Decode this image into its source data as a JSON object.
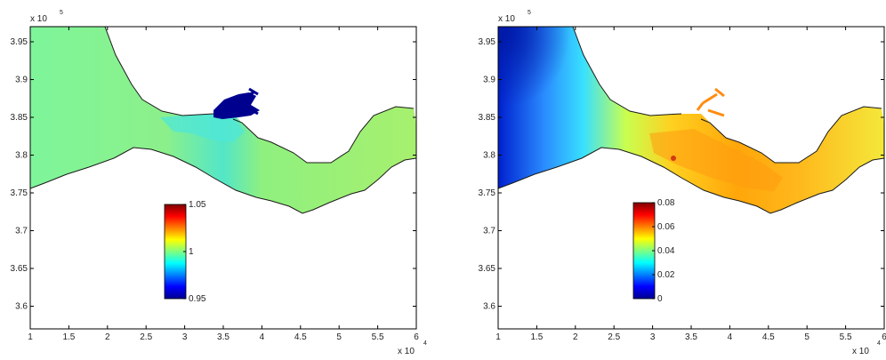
{
  "chart_data": [
    {
      "type": "heatmap",
      "title": "",
      "xlabel": "",
      "ylabel": "",
      "x_multiplier": "x 10",
      "x_exponent": "4",
      "y_multiplier": "x 10",
      "y_exponent": "5",
      "xlim": [
        1,
        6
      ],
      "ylim": [
        3.57,
        3.97
      ],
      "x_ticks": [
        "1",
        "1.5",
        "2",
        "2.5",
        "3",
        "3.5",
        "4",
        "4.5",
        "5",
        "5.5",
        "6"
      ],
      "y_ticks": [
        "3.6",
        "3.65",
        "3.7",
        "3.75",
        "3.8",
        "3.85",
        "3.9",
        "3.95"
      ],
      "colorbar": {
        "min": 0.95,
        "max": 1.05,
        "ticks": [
          "0.95",
          "1",
          "1.05"
        ]
      },
      "description_value": "field near 1.0 over the estuary, minimum 0.95 in the harbour basin"
    },
    {
      "type": "heatmap",
      "title": "",
      "xlabel": "",
      "ylabel": "",
      "x_multiplier": "x 10",
      "x_exponent": "4",
      "y_multiplier": "x 10",
      "y_exponent": "5",
      "xlim": [
        1,
        6
      ],
      "ylim": [
        3.57,
        3.97
      ],
      "x_ticks": [
        "1",
        "1.5",
        "2",
        "2.5",
        "3",
        "3.5",
        "4",
        "4.5",
        "5",
        "5.5",
        "6"
      ],
      "y_ticks": [
        "3.6",
        "3.65",
        "3.7",
        "3.75",
        "3.8",
        "3.85",
        "3.9",
        "3.95"
      ],
      "colorbar": {
        "min": 0,
        "max": 0.08,
        "ticks": [
          "0",
          "0.02",
          "0.04",
          "0.06",
          "0.08"
        ]
      },
      "description_value": "field from 0 offshore (west) to about 0.06 in the estuary"
    }
  ],
  "colors": {
    "jet": [
      "#00008f",
      "#0000ff",
      "#00ffff",
      "#ffff00",
      "#ff0000",
      "#800000"
    ],
    "coast": "#1a1a1a",
    "axes": "#000000"
  }
}
